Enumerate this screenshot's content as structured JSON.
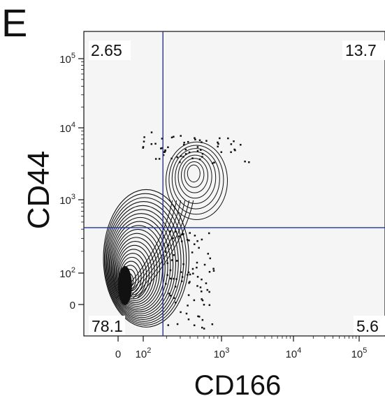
{
  "chart_data": {
    "type": "contour",
    "panel_letter": "E",
    "xlabel": "CD166",
    "ylabel": "CD44",
    "x_scale": "biexponential",
    "y_scale": "biexponential",
    "xlim": [
      -80,
      150000
    ],
    "ylim": [
      -60,
      150000
    ],
    "x_ticks": [
      {
        "value": 0,
        "base": "0",
        "exp": ""
      },
      {
        "value": 100,
        "base": "10",
        "exp": "2"
      },
      {
        "value": 1000,
        "base": "10",
        "exp": "3"
      },
      {
        "value": 10000,
        "base": "10",
        "exp": "4"
      },
      {
        "value": 100000,
        "base": "10",
        "exp": "5"
      }
    ],
    "y_ticks": [
      {
        "value": 0,
        "base": "0",
        "exp": ""
      },
      {
        "value": 100,
        "base": "10",
        "exp": "2"
      },
      {
        "value": 1000,
        "base": "10",
        "exp": "3"
      },
      {
        "value": 10000,
        "base": "10",
        "exp": "4"
      },
      {
        "value": 100000,
        "base": "10",
        "exp": "5"
      }
    ],
    "gates": {
      "x_threshold": 180,
      "y_threshold": 420
    },
    "quadrants": {
      "upper_left": "2.65",
      "upper_right": "13.7",
      "lower_left": "78.1",
      "lower_right": "5.6"
    },
    "populations": [
      {
        "name": "",
        "center": [
          440,
          2400
        ],
        "spread_decades": [
          0.2,
          0.18
        ]
      },
      {
        "name": "",
        "center": [
          10,
          40
        ],
        "spread_decades": [
          0.5,
          0.45
        ]
      }
    ],
    "colors": {
      "plot_bg": "#f5f5f5",
      "gate_line": "#2233aa",
      "contour": "#111111"
    }
  }
}
